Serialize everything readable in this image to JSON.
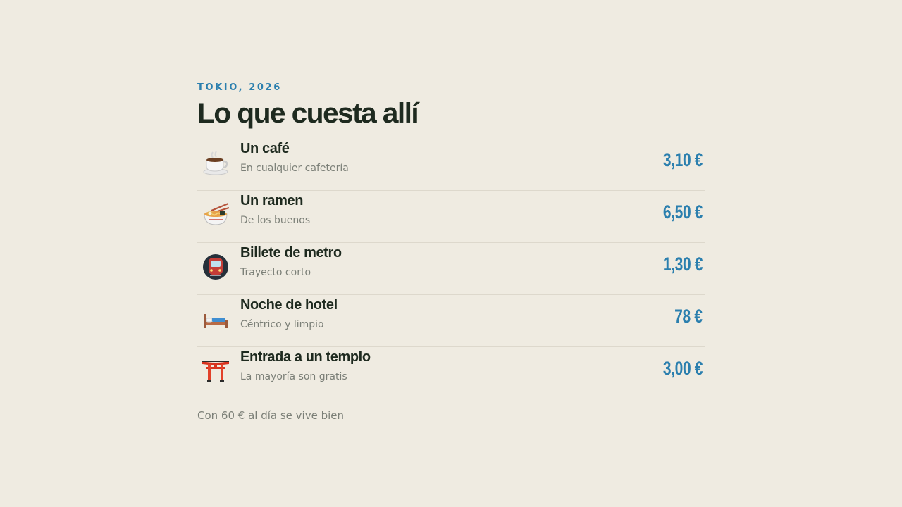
{
  "header": {
    "eyebrow": "TOKIO, 2026",
    "title": "Lo que cuesta allí"
  },
  "items": [
    {
      "icon": "coffee-cup-icon",
      "name": "Un café",
      "note": "En cualquier cafetería",
      "price": "3,10 €"
    },
    {
      "icon": "ramen-bowl-icon",
      "name": "Un ramen",
      "note": "De los buenos",
      "price": "6,50 €"
    },
    {
      "icon": "metro-train-icon",
      "name": "Billete de metro",
      "note": "Trayecto corto",
      "price": "1,30 €"
    },
    {
      "icon": "bed-icon",
      "name": "Noche de hotel",
      "note": "Céntrico y limpio",
      "price": "78 €"
    },
    {
      "icon": "torii-gate-icon",
      "name": "Entrada a un templo",
      "note": "La mayoría son gratis",
      "price": "3,00 €"
    }
  ],
  "footer": {
    "note": "Con 60 € al día se vive bien"
  },
  "colors": {
    "background": "#efebe1",
    "accent": "#2b7fae",
    "heading": "#1e2a1f",
    "muted": "#7b7f77",
    "divider": "#ddd8cc"
  }
}
